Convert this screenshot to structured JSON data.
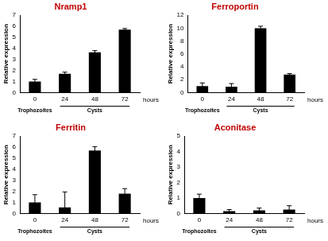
{
  "chart_data": [
    {
      "type": "bar",
      "title": "Nramp1",
      "y_label": "Relative expression",
      "x_label": "hours",
      "categories": [
        "0",
        "24",
        "48",
        "72"
      ],
      "values": [
        1.0,
        1.7,
        3.65,
        5.7
      ],
      "errors": [
        0.2,
        0.15,
        0.15,
        0.1
      ],
      "x_groups": [
        {
          "label": "Trophozoites",
          "categories": [
            "0"
          ]
        },
        {
          "label": "Cysts",
          "categories": [
            "24",
            "48",
            "72"
          ]
        }
      ],
      "color": "#000000",
      "ylim": [
        0,
        7
      ],
      "yticks": [
        0,
        1,
        2,
        3,
        4,
        5,
        6,
        7
      ],
      "grid": false
    },
    {
      "type": "bar",
      "title": "Ferroportin",
      "y_label": "Relative expression",
      "x_label": "hours",
      "categories": [
        "0",
        "24",
        "48",
        "72"
      ],
      "values": [
        1.0,
        0.9,
        10.0,
        2.8
      ],
      "errors": [
        0.5,
        0.5,
        0.3,
        0.15
      ],
      "x_groups": [
        {
          "label": "Trophozoites",
          "categories": [
            "0"
          ]
        },
        {
          "label": "Cysts",
          "categories": [
            "24",
            "48",
            "72"
          ]
        }
      ],
      "color": "#000000",
      "ylim": [
        0,
        12
      ],
      "yticks": [
        0,
        2,
        4,
        6,
        8,
        10,
        12
      ],
      "grid": false
    },
    {
      "type": "bar",
      "title": "Ferritin",
      "y_label": "Relative expression",
      "x_label": "hours",
      "categories": [
        "0",
        "24",
        "48",
        "72"
      ],
      "values": [
        1.0,
        0.55,
        5.7,
        1.8
      ],
      "errors": [
        0.7,
        1.4,
        0.35,
        0.45
      ],
      "x_groups": [
        {
          "label": "Trophozoites",
          "categories": [
            "0"
          ]
        },
        {
          "label": "Cysts",
          "categories": [
            "24",
            "48",
            "72"
          ]
        }
      ],
      "color": "#000000",
      "ylim": [
        0,
        7
      ],
      "yticks": [
        0,
        1,
        2,
        3,
        4,
        5,
        6,
        7
      ],
      "grid": false
    },
    {
      "type": "bar",
      "title": "Aconitase",
      "y_label": "Relative expression",
      "x_label": "hours",
      "categories": [
        "0",
        "24",
        "48",
        "72"
      ],
      "values": [
        1.0,
        0.15,
        0.2,
        0.25
      ],
      "errors": [
        0.25,
        0.1,
        0.15,
        0.25
      ],
      "x_groups": [
        {
          "label": "Trophozoites",
          "categories": [
            "0"
          ]
        },
        {
          "label": "Cysts",
          "categories": [
            "24",
            "48",
            "72"
          ]
        }
      ],
      "color": "#000000",
      "ylim": [
        0,
        5
      ],
      "yticks": [
        0,
        1,
        2,
        3,
        4,
        5
      ],
      "grid": false
    }
  ]
}
